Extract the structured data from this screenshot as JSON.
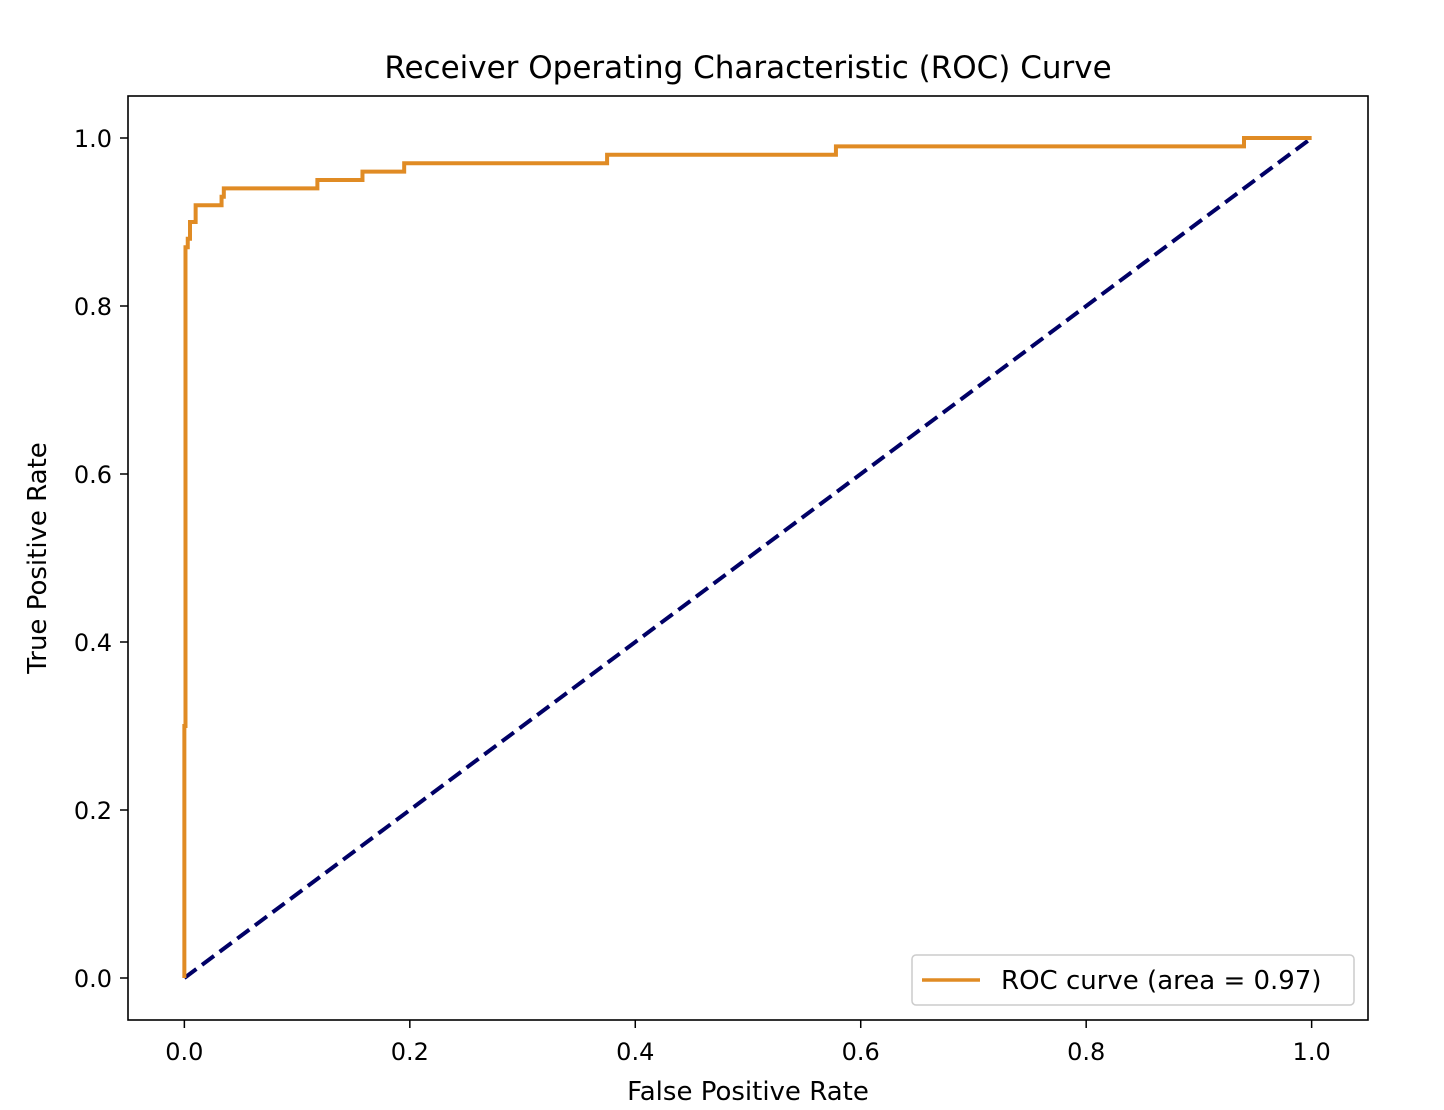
{
  "chart_data": {
    "type": "line",
    "title": "Receiver Operating Characteristic (ROC) Curve",
    "xlabel": "False Positive Rate",
    "ylabel": "True Positive Rate",
    "xlim": [
      -0.05,
      1.05
    ],
    "ylim": [
      -0.05,
      1.05
    ],
    "xticks": [
      "0.0",
      "0.2",
      "0.4",
      "0.6",
      "0.8",
      "1.0"
    ],
    "yticks": [
      "0.0",
      "0.2",
      "0.4",
      "0.6",
      "0.8",
      "1.0"
    ],
    "grid": false,
    "legend_position": "lower right",
    "series": [
      {
        "name": "ROC curve (area = 0.97)",
        "color": "#e08b24",
        "style": "solid",
        "points": [
          [
            0.0,
            0.0
          ],
          [
            0.0,
            0.3
          ],
          [
            0.001,
            0.3
          ],
          [
            0.001,
            0.87
          ],
          [
            0.003,
            0.87
          ],
          [
            0.003,
            0.88
          ],
          [
            0.005,
            0.88
          ],
          [
            0.005,
            0.9
          ],
          [
            0.01,
            0.9
          ],
          [
            0.01,
            0.92
          ],
          [
            0.033,
            0.92
          ],
          [
            0.033,
            0.93
          ],
          [
            0.035,
            0.93
          ],
          [
            0.035,
            0.94
          ],
          [
            0.118,
            0.94
          ],
          [
            0.118,
            0.95
          ],
          [
            0.158,
            0.95
          ],
          [
            0.158,
            0.96
          ],
          [
            0.195,
            0.96
          ],
          [
            0.195,
            0.97
          ],
          [
            0.375,
            0.97
          ],
          [
            0.375,
            0.98
          ],
          [
            0.578,
            0.98
          ],
          [
            0.578,
            0.99
          ],
          [
            0.94,
            0.99
          ],
          [
            0.94,
            1.0
          ],
          [
            1.0,
            1.0
          ]
        ]
      },
      {
        "color": "#000066",
        "style": "dashed",
        "points": [
          [
            0.0,
            0.0
          ],
          [
            1.0,
            1.0
          ]
        ]
      }
    ]
  }
}
